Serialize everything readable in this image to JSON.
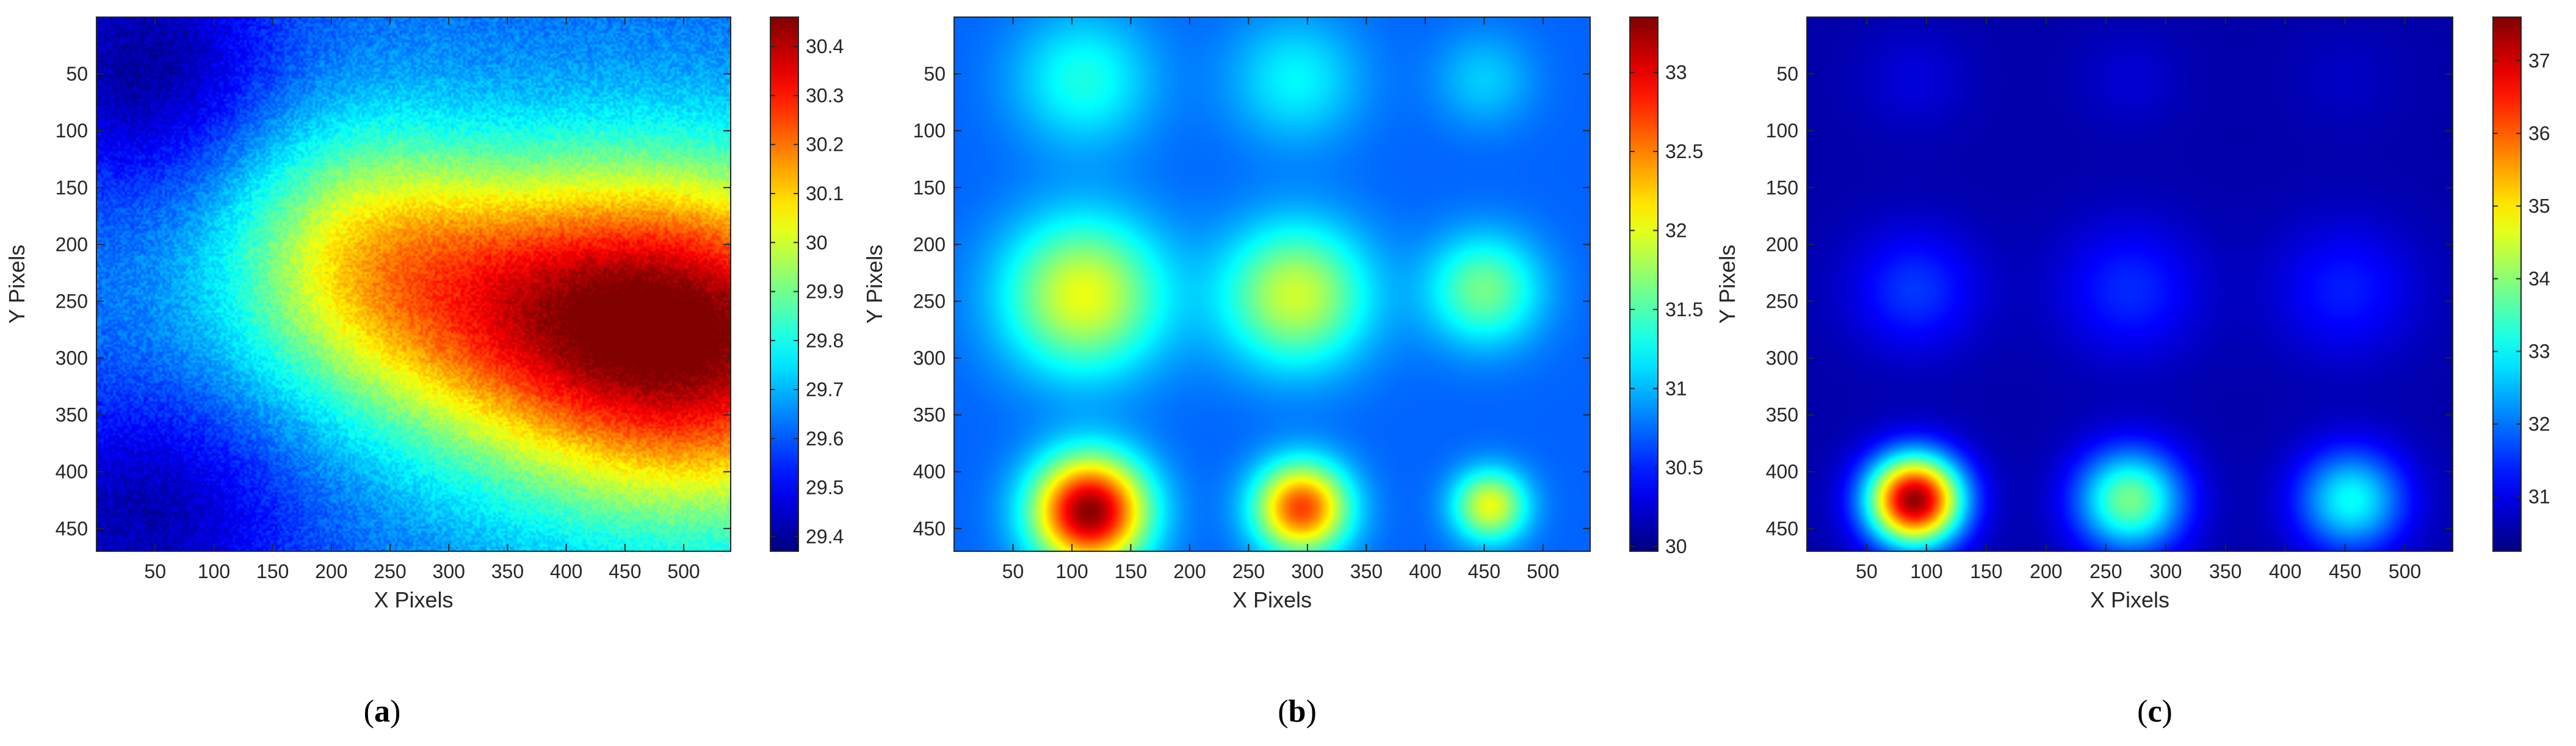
{
  "chart_data": [
    {
      "type": "heatmap",
      "panel_label": "a",
      "xlabel": "X Pixels",
      "ylabel": "Y Pixels",
      "xlim": [
        0,
        540
      ],
      "ylim": [
        470,
        0
      ],
      "xticks": [
        50,
        100,
        150,
        200,
        250,
        300,
        350,
        400,
        450,
        500
      ],
      "yticks": [
        50,
        100,
        150,
        200,
        250,
        300,
        350,
        400,
        450
      ],
      "colormap": "jet",
      "colorbar": {
        "min": 29.37,
        "max": 30.46,
        "ticks": [
          29.4,
          29.5,
          29.6,
          29.7,
          29.8,
          29.9,
          30,
          30.1,
          30.2,
          30.3,
          30.4
        ]
      },
      "field": {
        "kind": "diffuse",
        "base": 29.62,
        "blobs": [
          {
            "x": 520,
            "y": 290,
            "sx": 190,
            "sy": 150,
            "amp": 0.72
          },
          {
            "x": 340,
            "y": 250,
            "sx": 190,
            "sy": 120,
            "amp": 0.42
          },
          {
            "x": 220,
            "y": 190,
            "sx": 110,
            "sy": 110,
            "amp": 0.22
          },
          {
            "x": 40,
            "y": 40,
            "sx": 110,
            "sy": 110,
            "amp": -0.22
          },
          {
            "x": 40,
            "y": 440,
            "sx": 130,
            "sy": 110,
            "amp": -0.2
          }
        ]
      }
    },
    {
      "type": "heatmap",
      "panel_label": "b",
      "xlabel": "X Pixels",
      "ylabel": "Y Pixels",
      "xlim": [
        0,
        540
      ],
      "ylim": [
        470,
        0
      ],
      "xticks": [
        50,
        100,
        150,
        200,
        250,
        300,
        350,
        400,
        450,
        500
      ],
      "yticks": [
        50,
        100,
        150,
        200,
        250,
        300,
        350,
        400,
        450
      ],
      "colormap": "jet",
      "colorbar": {
        "min": 29.97,
        "max": 33.35,
        "ticks": [
          30,
          30.5,
          31,
          31.5,
          32,
          32.5,
          33
        ]
      },
      "field": {
        "kind": "spots",
        "base": 30.72,
        "spots": [
          {
            "x": 110,
            "y": 55,
            "sigma": 42,
            "amp": 0.6
          },
          {
            "x": 290,
            "y": 55,
            "sigma": 40,
            "amp": 0.5
          },
          {
            "x": 450,
            "y": 55,
            "sigma": 30,
            "amp": 0.35
          },
          {
            "x": 110,
            "y": 245,
            "sigma": 48,
            "amp": 1.3
          },
          {
            "x": 290,
            "y": 245,
            "sigma": 44,
            "amp": 1.2
          },
          {
            "x": 450,
            "y": 240,
            "sigma": 34,
            "amp": 0.9
          },
          {
            "x": 115,
            "y": 435,
            "sigma": 34,
            "amp": 2.6
          },
          {
            "x": 295,
            "y": 432,
            "sigma": 28,
            "amp": 2.0
          },
          {
            "x": 455,
            "y": 430,
            "sigma": 22,
            "amp": 1.3
          }
        ]
      }
    },
    {
      "type": "heatmap",
      "panel_label": "c",
      "xlabel": "X Pixels",
      "ylabel": "Y Pixels",
      "xlim": [
        0,
        540
      ],
      "ylim": [
        470,
        0
      ],
      "xticks": [
        50,
        100,
        150,
        200,
        250,
        300,
        350,
        400,
        450,
        500
      ],
      "yticks": [
        50,
        100,
        150,
        200,
        250,
        300,
        350,
        400,
        450
      ],
      "colormap": "jet",
      "colorbar": {
        "min": 30.25,
        "max": 37.6,
        "ticks": [
          31,
          32,
          33,
          34,
          35,
          36,
          37
        ]
      },
      "field": {
        "kind": "spots",
        "base": 30.55,
        "spots": [
          {
            "x": 90,
            "y": 55,
            "sigma": 32,
            "amp": 0.35
          },
          {
            "x": 270,
            "y": 55,
            "sigma": 30,
            "amp": 0.3
          },
          {
            "x": 450,
            "y": 55,
            "sigma": 30,
            "amp": 0.2
          },
          {
            "x": 90,
            "y": 240,
            "sigma": 38,
            "amp": 1.0
          },
          {
            "x": 270,
            "y": 240,
            "sigma": 42,
            "amp": 0.9
          },
          {
            "x": 450,
            "y": 240,
            "sigma": 42,
            "amp": 0.8
          },
          {
            "x": 90,
            "y": 425,
            "sigma": 28,
            "amp": 6.9
          },
          {
            "x": 270,
            "y": 425,
            "sigma": 32,
            "amp": 3.3
          },
          {
            "x": 455,
            "y": 425,
            "sigma": 32,
            "amp": 2.5
          }
        ]
      }
    }
  ]
}
